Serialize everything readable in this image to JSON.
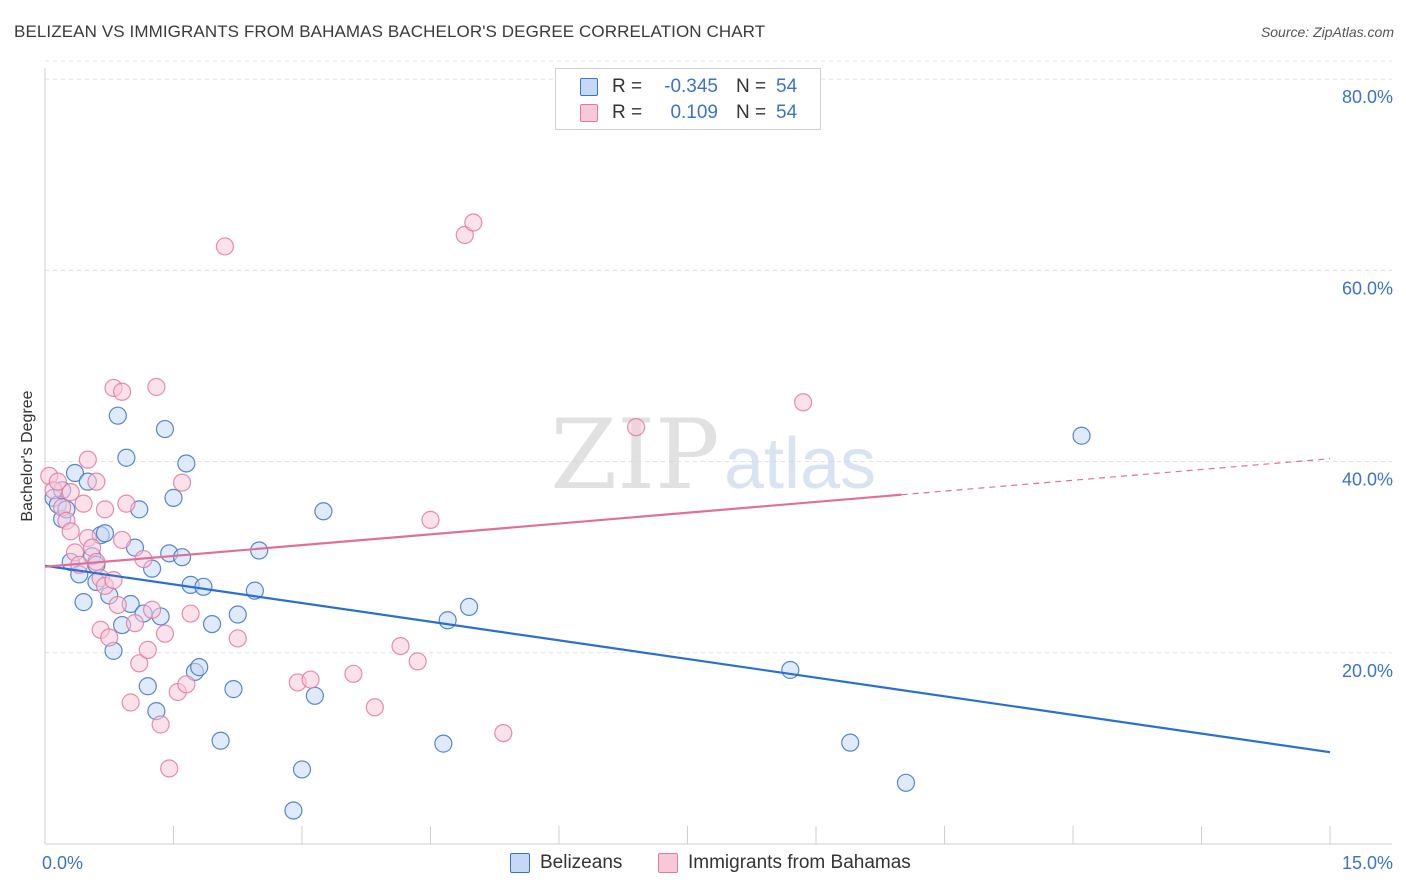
{
  "header": {
    "title": "BELIZEAN VS IMMIGRANTS FROM BAHAMAS BACHELOR'S DEGREE CORRELATION CHART",
    "source": "Source: ZipAtlas.com"
  },
  "watermark": {
    "zip": "ZIP",
    "atlas": "atlas"
  },
  "legend": {
    "rows": [
      {
        "r_label": "R =",
        "r_value": "-0.345",
        "n_label": "N =",
        "n_value": "54"
      },
      {
        "r_label": "R =",
        "r_value": "0.109",
        "n_label": "N =",
        "n_value": "54"
      }
    ]
  },
  "bottom_legend": {
    "belizeans": "Belizeans",
    "bahamas": "Immigrants from Bahamas"
  },
  "colors": {
    "blue": "#3b73c9",
    "blue_fill": "#c5d8f5",
    "blue_line": "#2a6fd4",
    "pink": "#e07aa0",
    "pink_fill": "#f7c9d8",
    "pink_line": "#e0709a",
    "grid": "#e2e2e2",
    "tick_text": "#3b73c9"
  },
  "chart_data": {
    "type": "scatter",
    "title": "BELIZEAN VS IMMIGRANTS FROM BAHAMAS BACHELOR'S DEGREE CORRELATION CHART",
    "xlabel": "",
    "ylabel": "Bachelor's Degree",
    "xlim": [
      0,
      15
    ],
    "ylim": [
      0,
      82
    ],
    "x_tick_labels": [
      {
        "value": 0,
        "label": "0.0%"
      },
      {
        "value": 15,
        "label": "15.0%"
      }
    ],
    "y_tick_labels": [
      {
        "value": 20,
        "label": "20.0%"
      },
      {
        "value": 40,
        "label": "40.0%"
      },
      {
        "value": 60,
        "label": "60.0%"
      },
      {
        "value": 80,
        "label": "80.0%"
      }
    ],
    "series": [
      {
        "name": "Belizeans",
        "color": "#3b73c9",
        "trend": {
          "x0": 0,
          "y0": 29.1,
          "x1": 15,
          "y1": 9.6,
          "dashed_from": null
        },
        "points": [
          [
            0.1,
            36.2
          ],
          [
            0.15,
            35.5
          ],
          [
            0.2,
            34.0
          ],
          [
            0.25,
            35.0
          ],
          [
            0.3,
            29.5
          ],
          [
            0.35,
            38.8
          ],
          [
            0.4,
            28.2
          ],
          [
            0.45,
            25.3
          ],
          [
            0.5,
            37.9
          ],
          [
            0.55,
            30.1
          ],
          [
            0.6,
            27.4
          ],
          [
            0.6,
            29.2
          ],
          [
            0.65,
            32.3
          ],
          [
            0.7,
            32.5
          ],
          [
            0.75,
            26.0
          ],
          [
            0.8,
            20.2
          ],
          [
            0.85,
            44.8
          ],
          [
            0.9,
            22.9
          ],
          [
            0.95,
            40.4
          ],
          [
            1.0,
            25.1
          ],
          [
            1.05,
            31.0
          ],
          [
            1.1,
            35.0
          ],
          [
            1.15,
            24.1
          ],
          [
            1.2,
            16.5
          ],
          [
            1.25,
            28.8
          ],
          [
            1.3,
            13.9
          ],
          [
            1.35,
            23.8
          ],
          [
            1.4,
            43.4
          ],
          [
            1.45,
            30.4
          ],
          [
            1.5,
            36.2
          ],
          [
            1.6,
            30.0
          ],
          [
            1.65,
            39.8
          ],
          [
            1.7,
            27.1
          ],
          [
            1.75,
            18.0
          ],
          [
            1.8,
            18.5
          ],
          [
            1.85,
            26.9
          ],
          [
            1.95,
            23.0
          ],
          [
            2.05,
            10.8
          ],
          [
            2.2,
            16.2
          ],
          [
            2.25,
            24.0
          ],
          [
            2.45,
            26.5
          ],
          [
            2.5,
            30.7
          ],
          [
            2.9,
            3.5
          ],
          [
            3.0,
            7.8
          ],
          [
            3.15,
            15.5
          ],
          [
            3.25,
            34.8
          ],
          [
            4.65,
            10.5
          ],
          [
            4.7,
            23.4
          ],
          [
            4.95,
            24.8
          ],
          [
            8.7,
            18.2
          ],
          [
            9.4,
            10.6
          ],
          [
            10.05,
            6.4
          ],
          [
            12.1,
            42.7
          ],
          [
            0.2,
            37.0
          ]
        ]
      },
      {
        "name": "Immigrants from Bahamas",
        "color": "#e07aa0",
        "trend": {
          "x0": 0,
          "y0": 29.0,
          "x1": 15,
          "y1": 40.3,
          "dashed_from": 10.0
        },
        "points": [
          [
            0.05,
            38.5
          ],
          [
            0.1,
            37.0
          ],
          [
            0.15,
            37.9
          ],
          [
            0.2,
            35.2
          ],
          [
            0.25,
            33.8
          ],
          [
            0.3,
            32.7
          ],
          [
            0.3,
            36.8
          ],
          [
            0.35,
            30.5
          ],
          [
            0.4,
            29.2
          ],
          [
            0.45,
            35.6
          ],
          [
            0.5,
            32.0
          ],
          [
            0.5,
            40.2
          ],
          [
            0.55,
            31.0
          ],
          [
            0.6,
            29.5
          ],
          [
            0.6,
            37.9
          ],
          [
            0.65,
            27.8
          ],
          [
            0.65,
            22.4
          ],
          [
            0.7,
            35.0
          ],
          [
            0.7,
            27.0
          ],
          [
            0.75,
            21.6
          ],
          [
            0.8,
            27.6
          ],
          [
            0.8,
            47.7
          ],
          [
            0.85,
            25.0
          ],
          [
            0.9,
            47.3
          ],
          [
            0.95,
            35.6
          ],
          [
            1.0,
            14.8
          ],
          [
            1.05,
            23.1
          ],
          [
            1.1,
            18.9
          ],
          [
            1.15,
            29.8
          ],
          [
            1.2,
            20.3
          ],
          [
            1.25,
            24.5
          ],
          [
            1.3,
            47.8
          ],
          [
            1.35,
            12.5
          ],
          [
            1.4,
            22.0
          ],
          [
            1.45,
            7.9
          ],
          [
            1.55,
            15.9
          ],
          [
            1.6,
            37.8
          ],
          [
            1.65,
            16.7
          ],
          [
            1.7,
            24.1
          ],
          [
            2.1,
            62.5
          ],
          [
            2.25,
            21.5
          ],
          [
            2.95,
            16.9
          ],
          [
            3.1,
            17.2
          ],
          [
            3.6,
            17.8
          ],
          [
            3.85,
            14.3
          ],
          [
            4.15,
            20.7
          ],
          [
            4.35,
            19.1
          ],
          [
            4.5,
            33.9
          ],
          [
            4.9,
            63.7
          ],
          [
            5.0,
            65.0
          ],
          [
            5.35,
            11.6
          ],
          [
            6.9,
            43.6
          ],
          [
            8.85,
            46.2
          ],
          [
            0.9,
            31.8
          ]
        ]
      }
    ]
  }
}
